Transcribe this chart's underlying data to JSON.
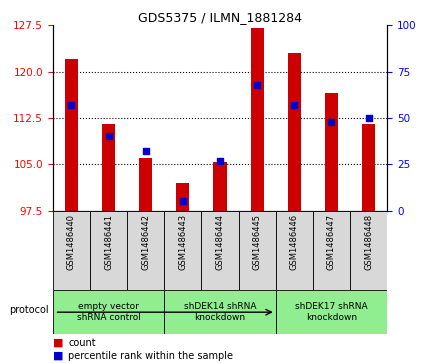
{
  "title": "GDS5375 / ILMN_1881284",
  "samples": [
    "GSM1486440",
    "GSM1486441",
    "GSM1486442",
    "GSM1486443",
    "GSM1486444",
    "GSM1486445",
    "GSM1486446",
    "GSM1486447",
    "GSM1486448"
  ],
  "counts": [
    122.0,
    111.5,
    106.0,
    102.0,
    105.3,
    127.0,
    123.0,
    116.5,
    111.5
  ],
  "percentiles": [
    57,
    40,
    32,
    5,
    27,
    68,
    57,
    48,
    50
  ],
  "ylim_left": [
    97.5,
    127.5
  ],
  "yticks_left": [
    97.5,
    105.0,
    112.5,
    120.0,
    127.5
  ],
  "ylim_right": [
    0,
    100
  ],
  "yticks_right": [
    0,
    25,
    50,
    75,
    100
  ],
  "bar_color": "#cc0000",
  "dot_color": "#0000cc",
  "bar_bottom": 97.5,
  "group_data": [
    {
      "start": 0,
      "end": 3,
      "label": "empty vector\nshRNA control"
    },
    {
      "start": 3,
      "end": 6,
      "label": "shDEK14 shRNA\nknockdown"
    },
    {
      "start": 6,
      "end": 9,
      "label": "shDEK17 shRNA\nknockdown"
    }
  ],
  "protocol_label": "protocol",
  "legend_count_label": "count",
  "legend_percentile_label": "percentile rank within the sample",
  "sample_box_color": "#d8d8d8",
  "group_box_color": "#90ee90",
  "bar_width": 0.35
}
